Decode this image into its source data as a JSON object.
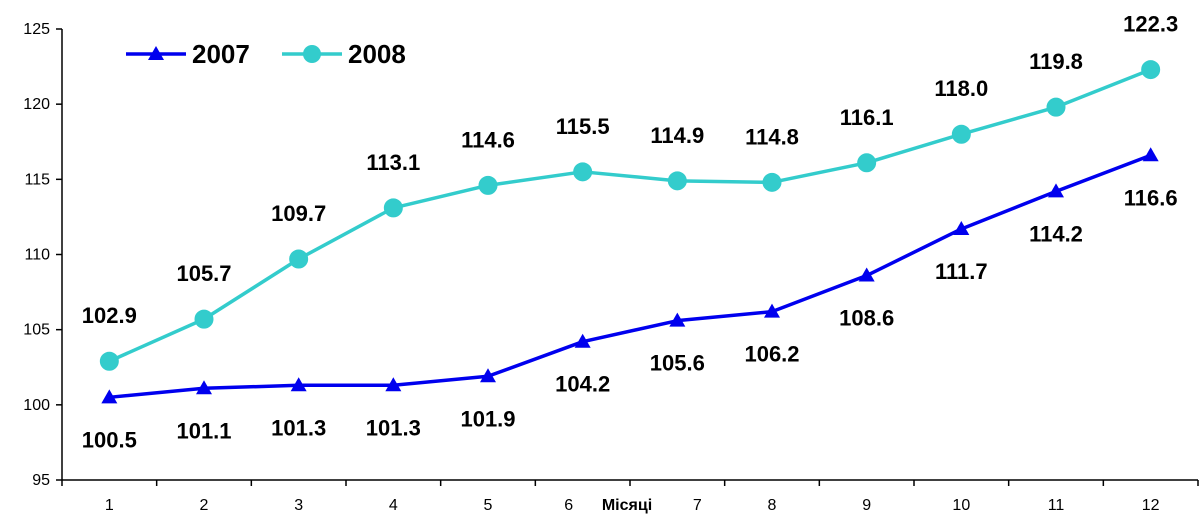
{
  "chart_data": {
    "type": "line",
    "title": "",
    "xlabel": "Місяці",
    "ylabel": "",
    "categories": [
      "1",
      "2",
      "3",
      "4",
      "5",
      "6",
      "7",
      "8",
      "9",
      "10",
      "11",
      "12"
    ],
    "ylim": [
      95,
      125
    ],
    "yticks": [
      95,
      100,
      105,
      110,
      115,
      120,
      125
    ],
    "grid": false,
    "legend_position": "top-left",
    "series": [
      {
        "name": "2007",
        "color": "#0000ee",
        "marker": "triangle",
        "values": [
          100.5,
          101.1,
          101.3,
          101.3,
          101.9,
          104.2,
          105.6,
          106.2,
          108.6,
          111.7,
          114.2,
          116.6
        ],
        "labels": [
          "100.5",
          "101.1",
          "101.3",
          "101.3",
          "101.9",
          "104.2",
          "105.6",
          "106.2",
          "108.6",
          "111.7",
          "114.2",
          "116.6"
        ],
        "label_position": "below"
      },
      {
        "name": "2008",
        "color": "#33cccc",
        "marker": "circle",
        "values": [
          102.9,
          105.7,
          109.7,
          113.1,
          114.6,
          115.5,
          114.9,
          114.8,
          116.1,
          118.0,
          119.8,
          122.3
        ],
        "labels": [
          "102.9",
          "105.7",
          "109.7",
          "113.1",
          "114.6",
          "115.5",
          "114.9",
          "114.8",
          "116.1",
          "118.0",
          "119.8",
          "122.3"
        ],
        "label_position": "above"
      }
    ]
  }
}
